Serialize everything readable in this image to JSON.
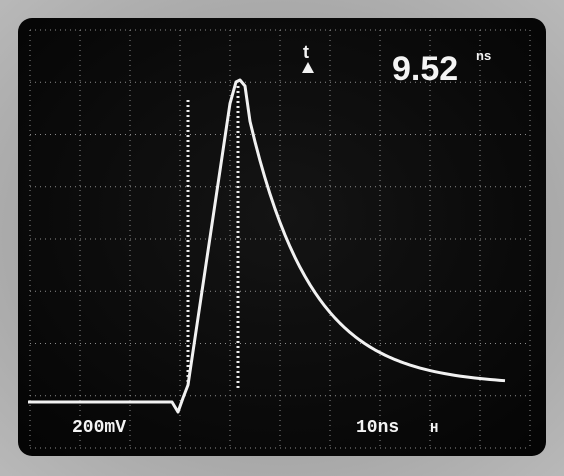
{
  "readout": {
    "delta_symbol": "t",
    "value": "9.52",
    "unit": "ns"
  },
  "channel_scale": "200mV",
  "time_scale": "10ns"
}
